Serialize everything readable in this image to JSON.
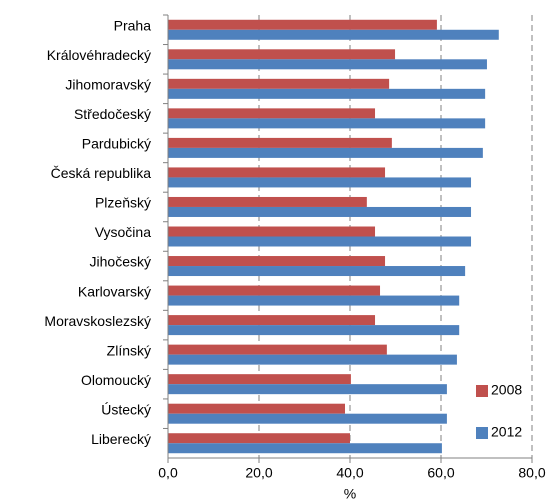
{
  "chart_data": {
    "type": "hbar",
    "x_label": "%",
    "categories": [
      "Praha",
      "Královéhradecký",
      "Jihomoravský",
      "Středočeský",
      "Pardubický",
      "Česká republika",
      "Plzeňský",
      "Vysočina",
      "Jihočeský",
      "Karlovarský",
      "Moravskoslezský",
      "Zlínský",
      "Olomoucký",
      "Ústecký",
      "Liberecký"
    ],
    "series": [
      {
        "name": "2008",
        "color": "#c0504d",
        "values": [
          59.1,
          49.9,
          48.6,
          45.5,
          49.2,
          47.7,
          43.7,
          45.5,
          47.7,
          46.6,
          45.5,
          48.1,
          40.2,
          38.9,
          40.0
        ]
      },
      {
        "name": "2012",
        "color": "#4f81bd",
        "values": [
          72.7,
          70.1,
          69.7,
          69.7,
          69.2,
          66.6,
          66.6,
          66.6,
          65.3,
          64.0,
          64.0,
          63.5,
          61.3,
          61.3,
          60.2
        ]
      }
    ],
    "xlim": [
      0,
      80
    ],
    "xticks": [
      {
        "value": 0,
        "label": "0,0"
      },
      {
        "value": 20,
        "label": "20,0"
      },
      {
        "value": 40,
        "label": "40,0"
      },
      {
        "value": 60,
        "label": "60,0"
      },
      {
        "value": 80,
        "label": "80,0"
      }
    ],
    "grid": true,
    "legend": "lower right"
  }
}
